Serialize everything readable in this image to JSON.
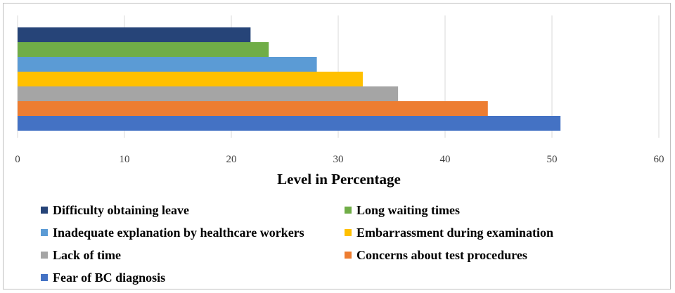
{
  "chart_data": {
    "type": "bar",
    "orientation": "horizontal",
    "xlabel": "Level in Percentage",
    "xlim": [
      0,
      60
    ],
    "xticks": [
      0,
      10,
      20,
      30,
      40,
      50,
      60
    ],
    "grid": true,
    "legend_position": "bottom",
    "series": [
      {
        "name": "Difficulty obtaining leave",
        "value": 21.8,
        "color": "#264478"
      },
      {
        "name": "Long waiting times",
        "value": 23.5,
        "color": "#70AD47"
      },
      {
        "name": "Inadequate explanation by healthcare workers",
        "value": 28.0,
        "color": "#5B9BD5"
      },
      {
        "name": "Embarrassment during examination",
        "value": 32.3,
        "color": "#FFC000"
      },
      {
        "name": "Lack of time",
        "value": 35.6,
        "color": "#A5A5A5"
      },
      {
        "name": "Concerns about test procedures",
        "value": 44.0,
        "color": "#ED7D31"
      },
      {
        "name": "Fear of BC diagnosis",
        "value": 50.8,
        "color": "#4472C4"
      }
    ]
  }
}
